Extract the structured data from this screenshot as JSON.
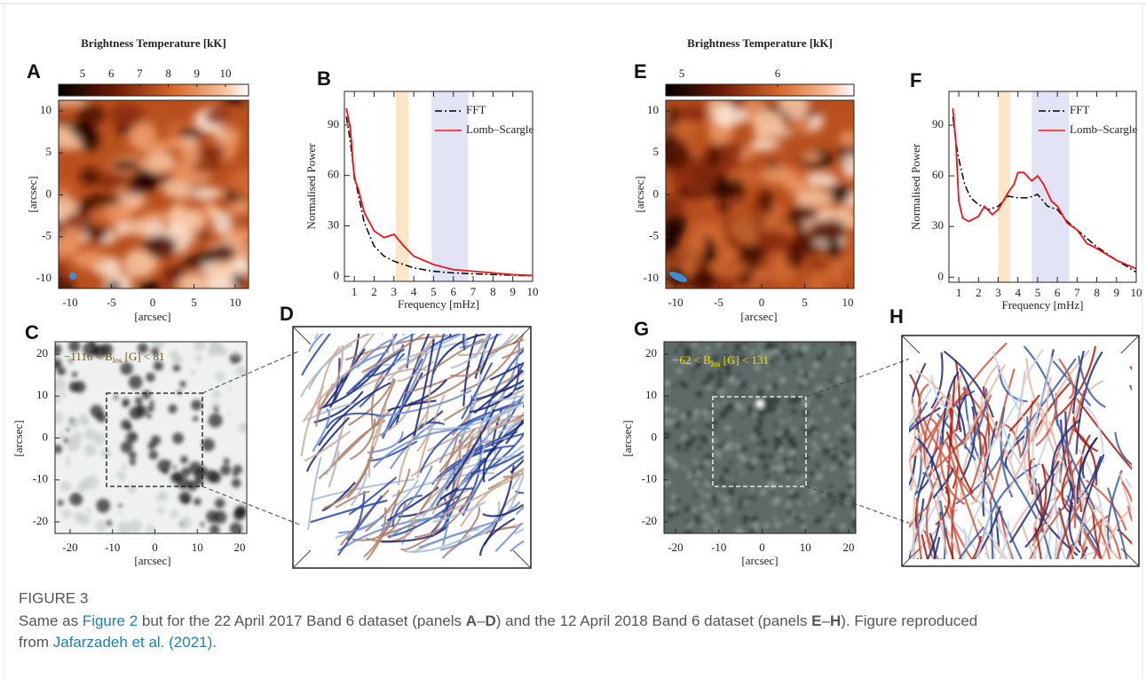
{
  "figure": {
    "image_panels": [
      {
        "label": "A",
        "kind": "alma1",
        "colorbar_title": "Brightness Temperature [kK]",
        "colorbar_ticks": [
          5,
          6,
          7,
          8,
          9,
          10
        ],
        "x_ticks": [
          -10,
          -5,
          0,
          5,
          10
        ],
        "y_ticks": [
          10,
          5,
          0,
          -5,
          -10
        ],
        "x_label": "[arcsec]",
        "y_label": "[arcsec]"
      },
      {
        "label": "C",
        "kind": "mag1",
        "annotation": {
          "text": "−1116 < B",
          "sub": "los",
          "tail": " [G] < 81"
        },
        "x_ticks": [
          -20,
          -10,
          0,
          10,
          20
        ],
        "y_ticks": [
          20,
          10,
          0,
          -10,
          -20
        ],
        "x_label": "[arcsec]",
        "y_label": "[arcsec]"
      },
      {
        "label": "D",
        "kind": "field1"
      },
      {
        "label": "E",
        "kind": "alma2",
        "colorbar_title": "Brightness Temperature [kK]",
        "colorbar_ticks": [
          5,
          6
        ],
        "x_ticks": [
          -10,
          -5,
          0,
          5,
          10
        ],
        "y_ticks": [
          10,
          5,
          0,
          -5,
          -10
        ],
        "x_label": "[arcsec]",
        "y_label": "[arcsec]"
      },
      {
        "label": "G",
        "kind": "mag2",
        "annotation": {
          "text": "−62 < B",
          "sub": "los",
          "tail": " [G] < 131"
        },
        "x_ticks": [
          -20,
          -10,
          0,
          10,
          20
        ],
        "y_ticks": [
          20,
          10,
          0,
          -10,
          -20
        ],
        "x_label": "[arcsec]",
        "y_label": "[arcsec]"
      },
      {
        "label": "H",
        "kind": "field2"
      }
    ]
  },
  "chart_data": [
    {
      "type": "line",
      "panel": "B",
      "xlabel": "Frequency [mHz]",
      "ylabel": "Normalised Power",
      "xlim": [
        0.5,
        10
      ],
      "ylim": [
        -3,
        110
      ],
      "xticks": [
        1,
        2,
        3,
        4,
        5,
        6,
        7,
        8,
        9,
        10
      ],
      "yticks": [
        0,
        30,
        60,
        90
      ],
      "legend": "upper right",
      "bands": [
        {
          "from": 3.1,
          "to": 3.75,
          "color": "#fbe6c8"
        },
        {
          "from": 4.9,
          "to": 6.75,
          "color": "#e3e3f6"
        }
      ],
      "series": [
        {
          "name": "FFT",
          "color": "#000000",
          "linestyle": "dashdot",
          "x": [
            0.6,
            0.8,
            1,
            1.5,
            2,
            2.5,
            3,
            4,
            5,
            6,
            8,
            10
          ],
          "values": [
            95,
            80,
            60,
            32,
            18,
            12,
            9,
            5,
            3,
            2,
            1,
            0.3
          ]
        },
        {
          "name": "Lomb–Scargle",
          "color": "#e8161b",
          "linestyle": "solid",
          "x": [
            0.6,
            0.8,
            1,
            1.2,
            1.5,
            2,
            2.5,
            3,
            3.5,
            4,
            5,
            6,
            7,
            8,
            9,
            10
          ],
          "values": [
            100,
            88,
            58,
            52,
            38,
            27,
            23,
            25,
            18,
            12,
            7,
            4,
            3,
            2,
            1,
            0.5
          ]
        }
      ]
    },
    {
      "type": "line",
      "panel": "F",
      "xlabel": "Frequency [mHz]",
      "ylabel": "Normalised Power",
      "xlim": [
        0.5,
        10
      ],
      "ylim": [
        -3,
        110
      ],
      "xticks": [
        1,
        2,
        3,
        4,
        5,
        6,
        7,
        8,
        9,
        10
      ],
      "yticks": [
        0,
        30,
        60,
        90
      ],
      "legend": "upper right",
      "bands": [
        {
          "from": 3,
          "to": 3.6,
          "color": "#fbe6c8"
        },
        {
          "from": 4.7,
          "to": 6.6,
          "color": "#e3e3f6"
        }
      ],
      "series": [
        {
          "name": "FFT",
          "color": "#000000",
          "linestyle": "dashdot",
          "x": [
            0.7,
            0.85,
            1,
            1.3,
            1.6,
            2,
            2.5,
            3,
            3.5,
            4,
            4.5,
            5,
            5.5,
            6,
            6.5,
            7,
            8,
            9,
            10
          ],
          "values": [
            95,
            80,
            70,
            55,
            47,
            43,
            40,
            42,
            48,
            47,
            47,
            49,
            42,
            40,
            33,
            28,
            18,
            10,
            3
          ]
        },
        {
          "name": "Lomb–Scargle",
          "color": "#e8161b",
          "linestyle": "solid",
          "x": [
            0.7,
            0.85,
            1,
            1.2,
            1.5,
            2,
            2.3,
            2.7,
            3,
            3.5,
            3.8,
            4,
            4.3,
            4.7,
            5,
            5.3,
            5.7,
            6,
            6.5,
            7,
            7.5,
            8,
            9,
            10
          ],
          "values": [
            100,
            80,
            45,
            35,
            33,
            36,
            42,
            37,
            40,
            50,
            55,
            62,
            62,
            57,
            60,
            55,
            45,
            42,
            32,
            28,
            20,
            17,
            10,
            5
          ]
        }
      ]
    }
  ],
  "caption": {
    "label": "FIGURE 3",
    "parts": [
      "Same as ",
      "Figure 2",
      " but for the 22 April 2017 Band 6 dataset (panels ",
      "A",
      "–",
      "D",
      ") and the 12 April 2018 Band 6 dataset (panels ",
      "E",
      "–",
      "H",
      "). Figure reproduced",
      "from ",
      "Jafarzadeh et al. (2021)",
      "."
    ]
  }
}
